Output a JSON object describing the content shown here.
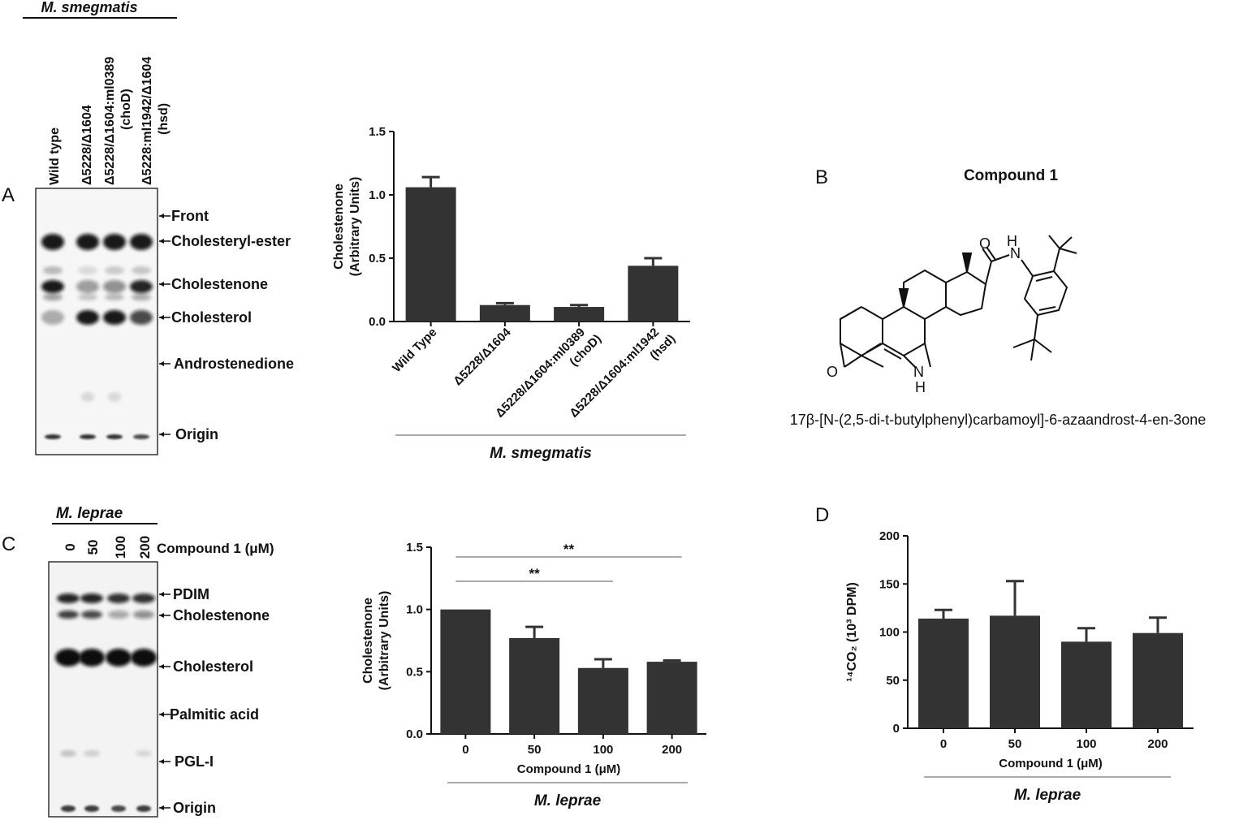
{
  "panel_letters": {
    "a": "A",
    "b": "B",
    "c": "C",
    "d": "D"
  },
  "panelA": {
    "species": "M. smegmatis",
    "lane_labels": [
      "Wild type",
      "Δ5228/Δ1604",
      "Δ5228/Δ1604:ml0389",
      "(choD)",
      "Δ5228:ml1942/Δ1604",
      "(hsd)"
    ],
    "band_labels": [
      "Front",
      "Cholesteryl-ester",
      "Cholestenone",
      "Cholesterol",
      "Androstenedione",
      "Origin"
    ]
  },
  "panelC": {
    "species": "M. leprae",
    "lanes": [
      "0",
      "50",
      "100",
      "200"
    ],
    "lanes_title": "Compound 1 (μM)",
    "band_labels": [
      "PDIM",
      "Cholestenone",
      "Cholesterol",
      "Palmitic acid",
      "PGL-I",
      "Origin"
    ]
  },
  "panelB": {
    "title": "Compound 1",
    "atoms": {
      "o_carbonyl": "O",
      "o_ketone": "O",
      "n_amide": "N",
      "h_amide": "H",
      "n_ring": "N",
      "h_ring": "H"
    },
    "caption": "17β-[N-(2,5-di-t-butylphenyl)carbamoyl]-6-azaandrost-4-en-3one"
  },
  "chart_data": [
    {
      "id": "chartA",
      "type": "bar",
      "categories": [
        "Wild Type",
        "Δ5228/Δ1604",
        "Δ5228/Δ1604:ml0389 (choD)",
        "Δ5228/Δ1604:ml1942 (hsd)"
      ],
      "category_lines": [
        [
          "Wild Type"
        ],
        [
          "Δ5228/Δ1604"
        ],
        [
          "Δ5228/Δ1604:ml0389",
          "(choD)"
        ],
        [
          "Δ5228/Δ1604:ml1942",
          "(hsd)"
        ]
      ],
      "values": [
        1.06,
        0.13,
        0.115,
        0.44
      ],
      "errors": [
        0.08,
        0.015,
        0.015,
        0.06
      ],
      "ylabel": "Cholestenone",
      "ylabel2": "(Arbitrary Units)",
      "ylim": [
        0,
        1.5
      ],
      "yticks": [
        "0.0",
        "0.5",
        "1.0",
        "1.5"
      ],
      "group_label": "M. smegmatis"
    },
    {
      "id": "chartC",
      "type": "bar",
      "categories": [
        "0",
        "50",
        "100",
        "200"
      ],
      "values": [
        1.0,
        0.77,
        0.53,
        0.58
      ],
      "errors": [
        0,
        0.09,
        0.07,
        0.01
      ],
      "ylabel": "Cholestenone",
      "ylabel2": "(Arbitrary Units)",
      "ylim": [
        0,
        1.5
      ],
      "yticks": [
        "0.0",
        "0.5",
        "1.0",
        "1.5"
      ],
      "xlabel": "Compound 1 (μM)",
      "group_label": "M. leprae",
      "significance": [
        {
          "from": 0,
          "to": 3,
          "label": "**"
        },
        {
          "from": 0,
          "to": 2,
          "label": "**"
        }
      ]
    },
    {
      "id": "chartD",
      "type": "bar",
      "categories": [
        "0",
        "50",
        "100",
        "200"
      ],
      "values": [
        114,
        117,
        90,
        99
      ],
      "errors": [
        9,
        36,
        14,
        16
      ],
      "ylabel": "¹⁴CO₂ (10³ DPM)",
      "ylim": [
        0,
        200
      ],
      "yticks": [
        "0",
        "50",
        "100",
        "150",
        "200"
      ],
      "xlabel": "Compound 1 (μM)",
      "group_label": "M. leprae"
    }
  ]
}
